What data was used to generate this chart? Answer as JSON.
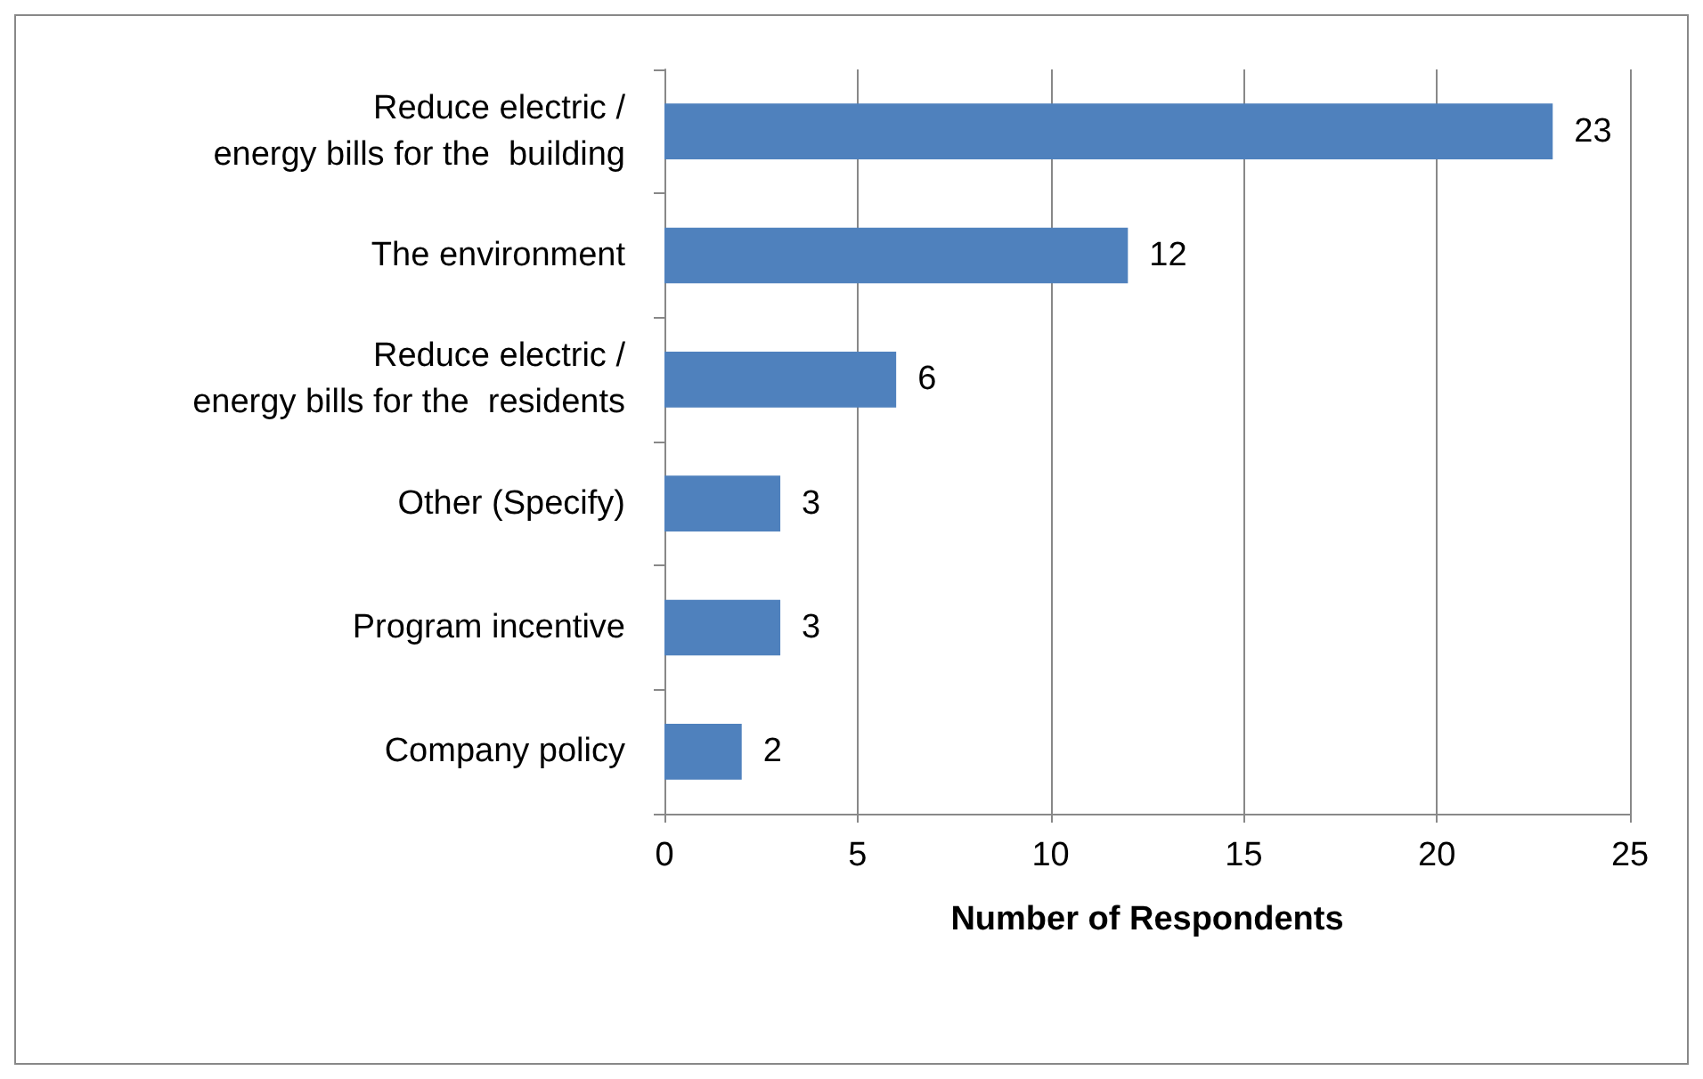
{
  "chart_data": {
    "type": "bar",
    "orientation": "horizontal",
    "xlabel": "Number of Respondents",
    "categories": [
      "Reduce electric /\nenergy bills for the  building",
      "The environment",
      "Reduce electric /\nenergy bills for the  residents",
      "Other (Specify)",
      "Program incentive",
      "Company policy"
    ],
    "values": [
      23,
      12,
      6,
      3,
      3,
      2
    ],
    "color": "#4f81bd",
    "xlim": [
      0,
      25
    ],
    "xticks": [
      0,
      5,
      10,
      15,
      20,
      25
    ],
    "grid": "x",
    "data_labels": true
  }
}
